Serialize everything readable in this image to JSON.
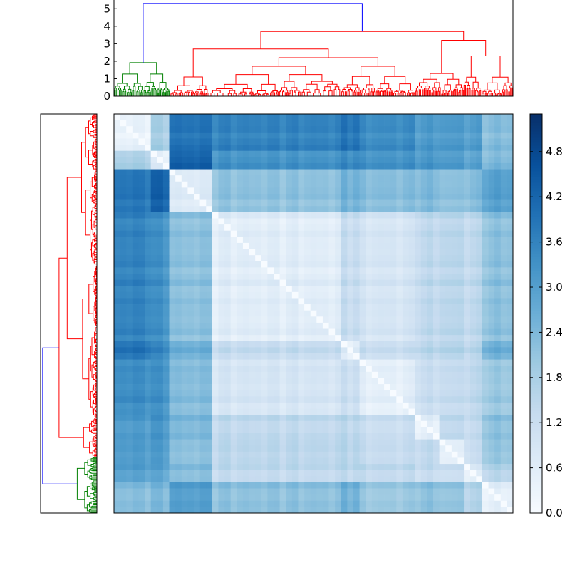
{
  "chart_data": [
    {
      "type": "dendrogram",
      "panel": "top",
      "orientation": "top",
      "ylim": [
        0,
        5.5
      ],
      "yticks": [
        "0",
        "1",
        "2",
        "3",
        "4",
        "5"
      ],
      "colors": {
        "root": "#0000ff",
        "cluster_a": "#008000",
        "cluster_b": "#ff0000"
      },
      "merge_heights": {
        "root": 5.3,
        "cluster_a": 1.92,
        "cluster_b": 3.7,
        "b_left": 2.7,
        "b_right": 3.2,
        "b_right_mid": 2.2,
        "b_right_far": 2.3
      }
    },
    {
      "type": "dendrogram",
      "panel": "left",
      "orientation": "left",
      "colors": {
        "root": "#0000ff",
        "cluster_a": "#008000",
        "cluster_b": "#ff0000"
      },
      "merge_heights": {
        "root": 5.3,
        "cluster_a": 1.92,
        "cluster_b": 3.7
      }
    },
    {
      "type": "heatmap",
      "panel": "main",
      "colormap": "Blues",
      "vmin": 0.0,
      "vmax": 5.3,
      "block_order": [
        "A1",
        "A2",
        "B1",
        "B2",
        "B3",
        "B4",
        "B5",
        "B6",
        "B7",
        "B8"
      ],
      "block_sizes": [
        22,
        14,
        25,
        87,
        10,
        36,
        17,
        14,
        14,
        18
      ],
      "block_means": [
        [
          0.4,
          1.8,
          3.9,
          3.6,
          3.9,
          3.4,
          3.1,
          3.1,
          3.0,
          2.3
        ],
        [
          1.8,
          0.6,
          4.3,
          3.3,
          3.5,
          3.3,
          3.2,
          3.1,
          2.9,
          2.4
        ],
        [
          3.9,
          4.3,
          0.7,
          2.2,
          2.6,
          2.3,
          2.4,
          2.2,
          2.3,
          3.0
        ],
        [
          3.6,
          3.3,
          2.2,
          0.6,
          1.3,
          0.9,
          1.4,
          1.5,
          1.4,
          2.2
        ],
        [
          3.9,
          3.5,
          2.6,
          1.3,
          0.6,
          1.2,
          1.5,
          1.6,
          1.5,
          2.6
        ],
        [
          3.4,
          3.3,
          2.3,
          0.9,
          1.2,
          0.5,
          1.2,
          1.3,
          1.4,
          2.0
        ],
        [
          3.1,
          3.2,
          2.4,
          1.4,
          1.5,
          1.2,
          0.5,
          1.4,
          1.3,
          2.2
        ],
        [
          3.1,
          3.1,
          2.2,
          1.5,
          1.6,
          1.3,
          1.4,
          0.5,
          1.2,
          2.1
        ],
        [
          3.0,
          2.9,
          2.3,
          1.4,
          1.5,
          1.4,
          1.3,
          1.2,
          0.6,
          1.6
        ],
        [
          2.3,
          2.4,
          3.0,
          2.2,
          2.6,
          2.0,
          2.2,
          2.1,
          1.6,
          0.5
        ]
      ]
    },
    {
      "type": "colorbar",
      "panel": "colorbar",
      "colormap": "Blues",
      "ticks": [
        0.0,
        0.6,
        1.2,
        1.8,
        2.4,
        3.0,
        3.6,
        4.2,
        4.8
      ],
      "tick_labels": [
        "0.0",
        "0.6",
        "1.2",
        "1.8",
        "2.4",
        "3.0",
        "3.6",
        "4.2",
        "4.8"
      ],
      "range": [
        0.0,
        5.3
      ]
    }
  ]
}
